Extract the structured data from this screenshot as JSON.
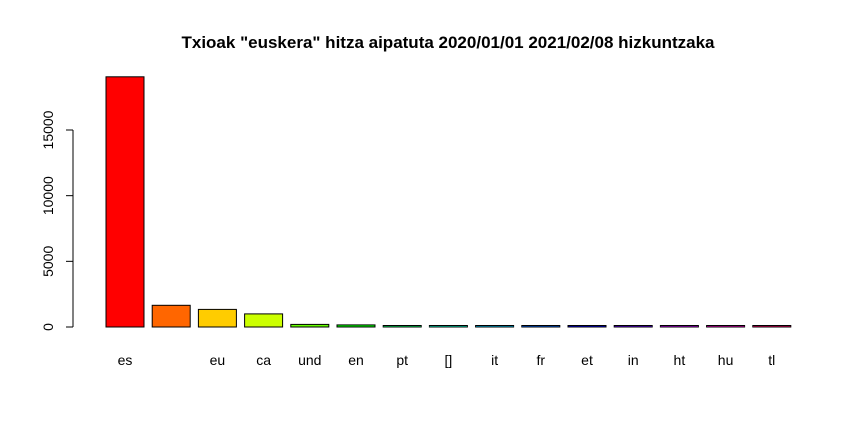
{
  "chart_data": {
    "type": "bar",
    "title": "Txioak \"euskera\" hitza aipatuta 2020/01/01 2021/02/08 hizkuntzaka",
    "xlabel": "",
    "ylabel": "",
    "categories": [
      "es",
      "",
      "eu",
      "ca",
      "und",
      "en",
      "pt",
      "[]",
      "it",
      "fr",
      "et",
      "in",
      "ht",
      "hu",
      "tl"
    ],
    "values": [
      19050,
      1650,
      1340,
      1000,
      200,
      160,
      110,
      45,
      25,
      20,
      15,
      12,
      10,
      8,
      5
    ],
    "colors": [
      "#FF0000",
      "#FF6600",
      "#FFCC00",
      "#CCFF00",
      "#66FF00",
      "#00FF00",
      "#00FF66",
      "#00FFCC",
      "#00CCFF",
      "#0066FF",
      "#0000FF",
      "#6600FF",
      "#CC00FF",
      "#FF00CC",
      "#FF0066"
    ],
    "yticks": [
      0,
      5000,
      10000,
      15000
    ],
    "ytick_labels": [
      "0",
      "5000",
      "10000",
      "15000"
    ],
    "ylim": [
      0,
      20000
    ],
    "grid": false
  }
}
